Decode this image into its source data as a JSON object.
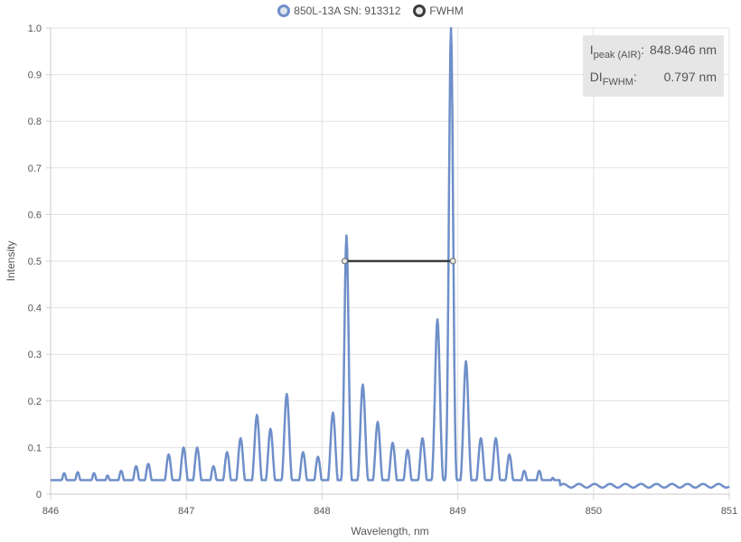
{
  "legend": [
    {
      "label": "850L-13A SN: 913312",
      "color": "#6f8fc9",
      "fill": "#dfe3ea"
    },
    {
      "label": "FWHM",
      "color": "#3c3c3c",
      "fill": "#e8e8e8"
    }
  ],
  "info": {
    "peak_label_main": "I",
    "peak_label_sub": "peak (AIR)",
    "peak_value": "848.946 nm",
    "fwhm_label_main": "DI",
    "fwhm_label_sub": "FWHM",
    "fwhm_value": "0.797 nm"
  },
  "chart_data": {
    "type": "line",
    "xlabel": "Wavelength, nm",
    "ylabel": "Intensity",
    "xlim": [
      846,
      851
    ],
    "ylim": [
      0,
      1.0
    ],
    "xticks": [
      846,
      847,
      848,
      849,
      850,
      851
    ],
    "yticks": [
      0,
      0.1,
      0.2,
      0.3,
      0.4,
      0.5,
      0.6,
      0.7,
      0.8,
      0.9,
      1.0
    ],
    "grid": true,
    "legend_position": "top-center",
    "series": [
      {
        "name": "850L-13A SN: 913312",
        "color": "#6f8fc9",
        "baseline": 0.03,
        "peaks": [
          [
            846.1,
            0.045
          ],
          [
            846.2,
            0.047
          ],
          [
            846.32,
            0.045
          ],
          [
            846.42,
            0.04
          ],
          [
            846.52,
            0.05
          ],
          [
            846.63,
            0.06
          ],
          [
            846.72,
            0.065
          ],
          [
            846.87,
            0.085
          ],
          [
            846.98,
            0.1
          ],
          [
            847.08,
            0.1
          ],
          [
            847.2,
            0.06
          ],
          [
            847.3,
            0.09
          ],
          [
            847.4,
            0.12
          ],
          [
            847.52,
            0.17
          ],
          [
            847.62,
            0.14
          ],
          [
            847.74,
            0.215
          ],
          [
            847.86,
            0.09
          ],
          [
            847.97,
            0.08
          ],
          [
            848.08,
            0.175
          ],
          [
            848.18,
            0.555
          ],
          [
            848.3,
            0.235
          ],
          [
            848.41,
            0.155
          ],
          [
            848.52,
            0.11
          ],
          [
            848.63,
            0.095
          ],
          [
            848.74,
            0.12
          ],
          [
            848.85,
            0.375
          ],
          [
            848.95,
            1.0
          ],
          [
            849.06,
            0.285
          ],
          [
            849.17,
            0.12
          ],
          [
            849.28,
            0.12
          ],
          [
            849.38,
            0.085
          ],
          [
            849.49,
            0.05
          ],
          [
            849.6,
            0.05
          ],
          [
            849.7,
            0.035
          ]
        ]
      },
      {
        "name": "FWHM",
        "color": "#3c3c3c",
        "x": [
          848.167,
          848.964
        ],
        "y": [
          0.5,
          0.5
        ]
      }
    ]
  }
}
